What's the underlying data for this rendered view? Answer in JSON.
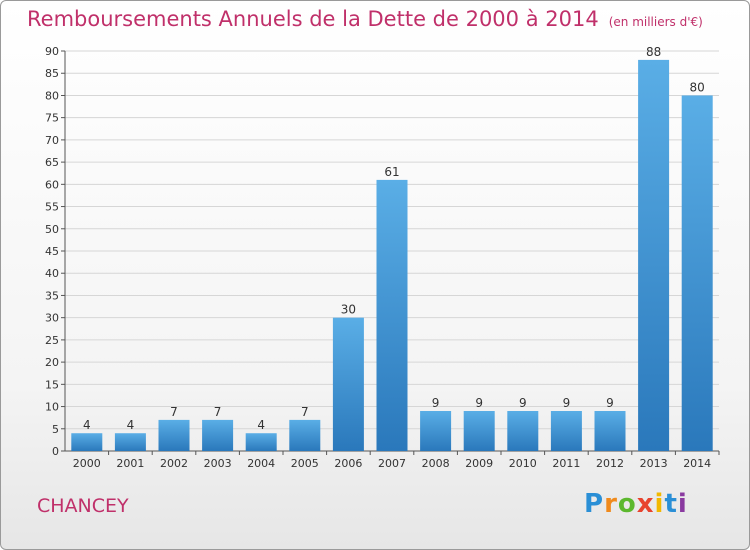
{
  "header": {
    "title": "Remboursements Annuels de la Dette de 2000 à 2014",
    "unit": "(en milliers d'€)"
  },
  "footer": {
    "commune": "CHANCEY",
    "brand": {
      "letters": [
        "P",
        "r",
        "o",
        "x",
        "i",
        "t",
        "i"
      ],
      "colors": [
        "#2a8fd6",
        "#f08a1c",
        "#5cb82e",
        "#e8432e",
        "#f2b800",
        "#2a8fd6",
        "#8a3aa0"
      ]
    }
  },
  "chart_data": {
    "type": "bar",
    "categories": [
      "2000",
      "2001",
      "2002",
      "2003",
      "2004",
      "2005",
      "2006",
      "2007",
      "2008",
      "2009",
      "2010",
      "2011",
      "2012",
      "2013",
      "2014"
    ],
    "values": [
      4,
      4,
      7,
      7,
      4,
      7,
      30,
      61,
      9,
      9,
      9,
      9,
      9,
      88,
      80
    ],
    "title": "Remboursements Annuels de la Dette de 2000 à 2014",
    "unit": "(en milliers d'€)",
    "xlabel": "",
    "ylabel": "",
    "ylim": [
      0,
      90
    ],
    "yticks": [
      0,
      5,
      10,
      15,
      20,
      25,
      30,
      35,
      40,
      45,
      50,
      55,
      60,
      65,
      70,
      75,
      80,
      85,
      90
    ],
    "grid": "y",
    "bar_color_top": "#5aaee6",
    "bar_color_bottom": "#2a78bb"
  }
}
